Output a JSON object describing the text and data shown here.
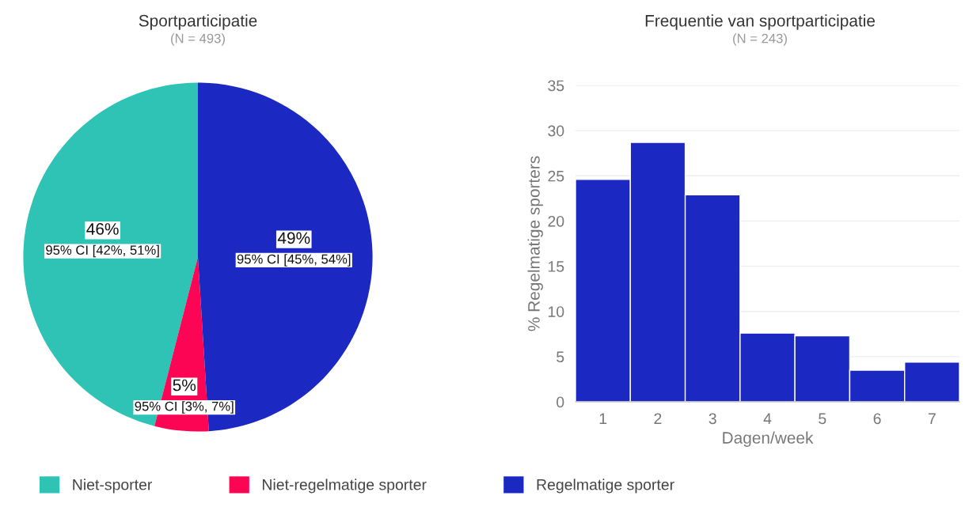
{
  "chart_data": [
    {
      "type": "pie",
      "title": "Sportparticipatie",
      "subtitle": "(N = 493)",
      "categories": [
        "Niet-sporter",
        "Niet-regelmatige sporter",
        "Regelmatige sporter"
      ],
      "values": [
        46,
        5,
        49
      ],
      "colors": [
        "#2fc3b6",
        "#fc0554",
        "#1b28c1"
      ],
      "value_labels": [
        "46%\n95% CI [42%, 51%]",
        "5%\n95% CI [3%, 7%]",
        "49%\n95% CI [45%, 54%]"
      ],
      "legend": "bottom"
    },
    {
      "type": "histogram",
      "title": "Frequentie van sportparticipatie",
      "subtitle": "(N = 243)",
      "xlabel": "Dagen/week",
      "ylabel": "% Regelmatige sporters",
      "bins": [
        0.5,
        1.5,
        2.5,
        3.5,
        4.5,
        5.5,
        6.5,
        7.5
      ],
      "values": [
        24.6,
        28.7,
        22.9,
        7.6,
        7.3,
        3.5,
        4.4
      ],
      "color": "#1b28c1",
      "xlim": [
        0.5,
        7.5
      ],
      "xticks": [
        1,
        2,
        3,
        4,
        5,
        6,
        7
      ],
      "ylim": [
        0,
        35
      ],
      "yticks": [
        0,
        5,
        10,
        15,
        20,
        25,
        30,
        35
      ],
      "grid": "y"
    }
  ]
}
